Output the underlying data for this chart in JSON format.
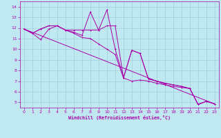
{
  "xlabel": "Windchill (Refroidissement éolien,°C)",
  "bg_color": "#c0e8f0",
  "grid_color": "#98c8d8",
  "line_color": "#aa00aa",
  "xlim": [
    -0.5,
    23.5
  ],
  "ylim": [
    4.5,
    14.5
  ],
  "xticks": [
    0,
    1,
    2,
    3,
    4,
    5,
    6,
    7,
    8,
    9,
    10,
    11,
    12,
    13,
    14,
    15,
    16,
    17,
    18,
    19,
    20,
    21,
    22,
    23
  ],
  "yticks": [
    5,
    6,
    7,
    8,
    9,
    10,
    11,
    12,
    13,
    14
  ],
  "series1": [
    [
      0,
      11.9
    ],
    [
      1,
      11.5
    ],
    [
      2,
      10.9
    ],
    [
      3,
      11.9
    ],
    [
      4,
      12.2
    ],
    [
      5,
      11.8
    ],
    [
      6,
      11.5
    ],
    [
      7,
      11.1
    ],
    [
      8,
      11.0
    ],
    [
      9,
      10.5
    ],
    [
      10,
      10.0
    ],
    [
      11,
      9.5
    ],
    [
      12,
      7.3
    ],
    [
      13,
      7.0
    ],
    [
      14,
      7.1
    ],
    [
      15,
      7.0
    ],
    [
      16,
      6.8
    ],
    [
      17,
      6.65
    ],
    [
      18,
      6.5
    ],
    [
      19,
      6.4
    ],
    [
      20,
      6.3
    ],
    [
      21,
      4.8
    ],
    [
      22,
      5.1
    ],
    [
      23,
      4.85
    ]
  ],
  "series2": [
    [
      0,
      11.9
    ],
    [
      1,
      11.5
    ],
    [
      2,
      11.9
    ],
    [
      3,
      12.2
    ],
    [
      4,
      12.2
    ],
    [
      5,
      11.8
    ],
    [
      6,
      11.6
    ],
    [
      7,
      11.3
    ],
    [
      8,
      13.5
    ],
    [
      9,
      11.8
    ],
    [
      10,
      13.7
    ],
    [
      11,
      10.0
    ],
    [
      12,
      7.3
    ],
    [
      13,
      9.9
    ],
    [
      14,
      9.6
    ],
    [
      15,
      7.2
    ],
    [
      16,
      7.0
    ],
    [
      17,
      6.8
    ],
    [
      18,
      6.65
    ],
    [
      19,
      6.5
    ],
    [
      20,
      6.3
    ],
    [
      21,
      4.8
    ],
    [
      22,
      5.1
    ],
    [
      23,
      4.85
    ]
  ],
  "series3": [
    [
      0,
      11.9
    ],
    [
      1,
      11.5
    ],
    [
      2,
      11.9
    ],
    [
      3,
      12.2
    ],
    [
      4,
      12.2
    ],
    [
      5,
      11.8
    ],
    [
      6,
      11.8
    ],
    [
      7,
      11.8
    ],
    [
      8,
      11.8
    ],
    [
      9,
      11.8
    ],
    [
      10,
      12.2
    ],
    [
      11,
      12.2
    ],
    [
      12,
      7.3
    ],
    [
      13,
      9.9
    ],
    [
      14,
      9.6
    ],
    [
      15,
      7.2
    ],
    [
      16,
      7.0
    ],
    [
      17,
      6.8
    ],
    [
      18,
      6.65
    ],
    [
      19,
      6.5
    ],
    [
      20,
      6.3
    ],
    [
      21,
      4.8
    ],
    [
      22,
      5.1
    ],
    [
      23,
      4.85
    ]
  ],
  "series4": [
    [
      0,
      11.9
    ],
    [
      23,
      4.85
    ]
  ]
}
